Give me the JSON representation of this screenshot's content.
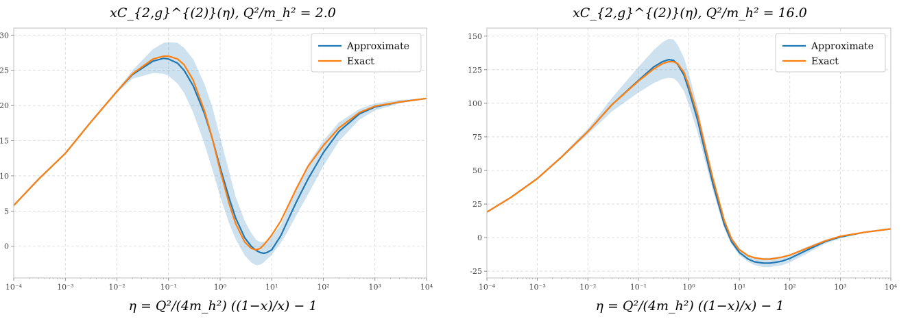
{
  "chart_data": [
    {
      "type": "line",
      "title": "xC_{2,g}^{(2)}(η),   Q²/m_h² = 2.0",
      "xlabel": "η = Q²/(4m_h²) ((1−x)/x) − 1",
      "ylabel": "",
      "xscale": "log",
      "xlim": [
        0.0001,
        10000
      ],
      "ylim": [
        -4.5,
        31
      ],
      "xticks": [
        "10⁻⁴",
        "10⁻³",
        "10⁻²",
        "10⁻¹",
        "10⁰",
        "10¹",
        "10²",
        "10³",
        "10⁴"
      ],
      "yticks": [
        0,
        5,
        10,
        15,
        20,
        25,
        30
      ],
      "grid": true,
      "legend_position": "top-right",
      "x": [
        0.0001,
        0.0003,
        0.001,
        0.003,
        0.01,
        0.02,
        0.05,
        0.08,
        0.1,
        0.15,
        0.2,
        0.3,
        0.5,
        0.7,
        1.0,
        1.5,
        2.0,
        3.0,
        4.0,
        5.0,
        6.0,
        7.0,
        8.0,
        10,
        15,
        20,
        30,
        50,
        100,
        200,
        500,
        1000,
        3000,
        10000
      ],
      "series": [
        {
          "name": "Approximate",
          "color": "#1f77b4",
          "values": [
            5.8,
            9.5,
            13.2,
            17.5,
            22.0,
            24.4,
            26.3,
            26.7,
            26.6,
            26.0,
            25.0,
            22.8,
            18.8,
            15.4,
            11.2,
            6.8,
            4.0,
            1.2,
            0.0,
            -0.6,
            -0.9,
            -1.0,
            -0.9,
            -0.5,
            1.5,
            3.5,
            6.3,
            9.5,
            13.3,
            16.3,
            18.8,
            19.8,
            20.5,
            21.0
          ],
          "band_low": [
            5.8,
            9.5,
            13.2,
            17.5,
            21.8,
            23.8,
            24.6,
            24.5,
            24.2,
            23.1,
            21.8,
            19.0,
            14.5,
            11.0,
            7.1,
            3.2,
            1.0,
            -1.3,
            -2.3,
            -2.7,
            -2.6,
            -2.3,
            -1.9,
            -1.2,
            0.5,
            2.0,
            4.4,
            7.3,
            11.4,
            14.9,
            18.0,
            19.3,
            20.3,
            21.0
          ],
          "band_high": [
            5.8,
            9.5,
            13.2,
            17.6,
            22.2,
            25.0,
            28.0,
            28.9,
            29.0,
            28.9,
            28.2,
            26.6,
            23.0,
            19.9,
            15.5,
            10.5,
            7.0,
            3.6,
            1.9,
            0.9,
            0.6,
            0.6,
            0.8,
            1.4,
            3.0,
            5.2,
            8.2,
            11.6,
            15.0,
            17.6,
            19.5,
            20.3,
            20.8,
            21.0
          ]
        },
        {
          "name": "Exact",
          "color": "#ff7f0e",
          "values": [
            5.8,
            9.5,
            13.2,
            17.5,
            22.0,
            24.5,
            26.6,
            27.0,
            27.0,
            26.6,
            25.8,
            23.6,
            19.2,
            15.4,
            10.8,
            6.0,
            3.2,
            0.6,
            -0.3,
            -0.5,
            -0.3,
            0.2,
            0.7,
            1.6,
            3.6,
            5.5,
            8.2,
            11.3,
            14.3,
            16.8,
            19.0,
            19.9,
            20.5,
            21.0
          ]
        }
      ]
    },
    {
      "type": "line",
      "title": "xC_{2,g}^{(2)}(η),   Q²/m_h² = 16.0",
      "xlabel": "η = Q²/(4m_h²) ((1−x)/x) − 1",
      "ylabel": "",
      "xscale": "log",
      "xlim": [
        0.0001,
        10000
      ],
      "ylim": [
        -30,
        156
      ],
      "xticks": [
        "10⁻⁴",
        "10⁻³",
        "10⁻²",
        "10⁻¹",
        "10⁰",
        "10¹",
        "10²",
        "10³",
        "10⁴"
      ],
      "yticks": [
        -25,
        0,
        25,
        50,
        75,
        100,
        125,
        150
      ],
      "grid": true,
      "legend_position": "top-right",
      "x": [
        0.0001,
        0.0003,
        0.001,
        0.003,
        0.01,
        0.03,
        0.1,
        0.2,
        0.3,
        0.4,
        0.5,
        0.6,
        0.8,
        1.0,
        1.5,
        2.0,
        3.0,
        5.0,
        7.0,
        10,
        15,
        20,
        30,
        40,
        50,
        70,
        100,
        200,
        500,
        1000,
        3000,
        10000
      ],
      "series": [
        {
          "name": "Approximate",
          "color": "#1f77b4",
          "values": [
            19.0,
            30.0,
            44.0,
            60.0,
            79.0,
            99.0,
            117.0,
            127.0,
            131.0,
            132.5,
            132.0,
            129.0,
            121.0,
            110.0,
            87.0,
            67.0,
            40.0,
            10.0,
            -3.0,
            -11.0,
            -16.0,
            -18.0,
            -19.0,
            -19.0,
            -18.5,
            -17.5,
            -15.5,
            -10.0,
            -3.0,
            0.5,
            4.0,
            6.5
          ],
          "band_low": [
            19.0,
            29.8,
            43.5,
            59.0,
            77.0,
            94.0,
            108.0,
            115.0,
            118.0,
            119.0,
            118.5,
            116.0,
            109.0,
            99.0,
            78.0,
            60.0,
            35.0,
            7.0,
            -5.0,
            -13.0,
            -18.0,
            -20.5,
            -22.0,
            -22.0,
            -21.5,
            -20.5,
            -18.5,
            -12.5,
            -4.5,
            -0.5,
            3.5,
            6.5
          ],
          "band_high": [
            19.0,
            30.2,
            44.5,
            61.0,
            81.0,
            104.0,
            127.0,
            139.5,
            145.5,
            148.0,
            147.5,
            143.5,
            134.0,
            122.0,
            97.0,
            75.0,
            46.0,
            14.0,
            1.0,
            -8.0,
            -13.0,
            -14.5,
            -15.0,
            -15.0,
            -14.5,
            -14.0,
            -12.5,
            -7.5,
            -1.5,
            1.5,
            4.5,
            6.5
          ]
        },
        {
          "name": "Exact",
          "color": "#ff7f0e",
          "values": [
            19.0,
            30.0,
            44.0,
            60.0,
            79.0,
            99.0,
            116.5,
            125.5,
            129.5,
            131.0,
            131.0,
            129.5,
            123.0,
            113.0,
            91.0,
            71.0,
            44.0,
            13.0,
            -1.0,
            -9.0,
            -13.5,
            -15.0,
            -16.0,
            -16.0,
            -15.5,
            -14.5,
            -13.0,
            -8.5,
            -2.5,
            1.0,
            4.0,
            6.5
          ]
        }
      ]
    }
  ]
}
